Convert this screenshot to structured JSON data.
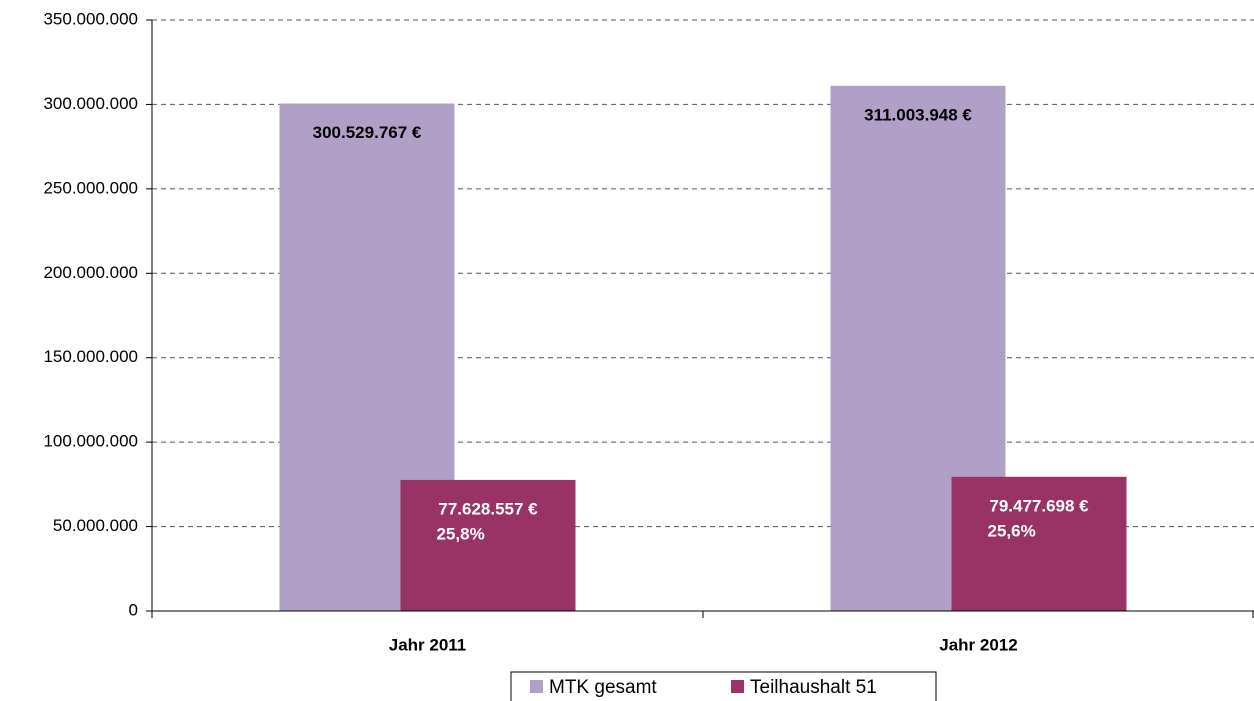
{
  "chart_data": {
    "type": "bar",
    "categories": [
      "Jahr 2011",
      "Jahr 2012"
    ],
    "series": [
      {
        "name": "MTK gesamt",
        "color": "#b0a0c8",
        "values": [
          300529767,
          311003948
        ],
        "value_labels": [
          "300.529.767 €",
          "311.003.948 €"
        ]
      },
      {
        "name": "Teilhaushalt 51",
        "color": "#993366",
        "values": [
          77628557,
          79477698
        ],
        "value_labels": [
          "77.628.557 €",
          "79.477.698 €"
        ],
        "percent_labels": [
          "25,8%",
          "25,6%"
        ]
      }
    ],
    "ylim": [
      0,
      350000000
    ],
    "yticks": [
      0,
      {
        "value": 50000000,
        "label": "50.000.000"
      },
      {
        "value": 100000000,
        "label": "100.000.000"
      },
      {
        "value": 150000000,
        "label": "150.000.000"
      },
      {
        "value": 200000000,
        "label": "200.000.000"
      },
      {
        "value": 250000000,
        "label": "250.000.000"
      },
      {
        "value": 300000000,
        "label": "300.000.000"
      },
      {
        "value": 350000000,
        "label": "350.000.000"
      }
    ],
    "grid": true
  }
}
